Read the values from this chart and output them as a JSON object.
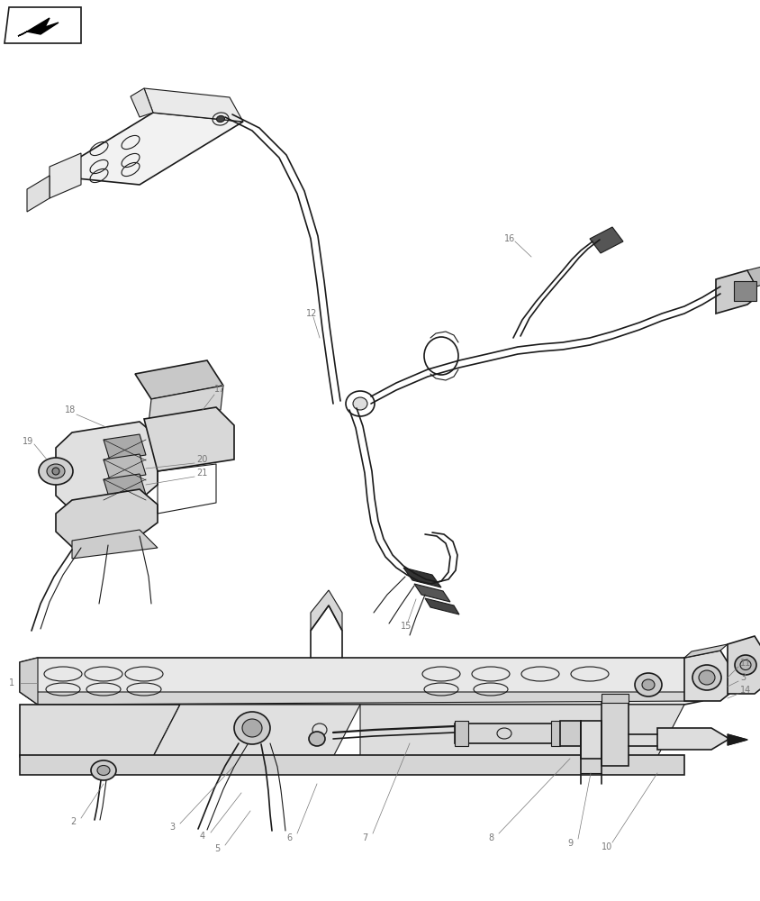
{
  "bg_color": "#ffffff",
  "lc": "#1a1a1a",
  "lc2": "#555555",
  "figsize": [
    8.44,
    10.0
  ],
  "dpi": 100,
  "label_fs": 7,
  "label_color": "#777777"
}
